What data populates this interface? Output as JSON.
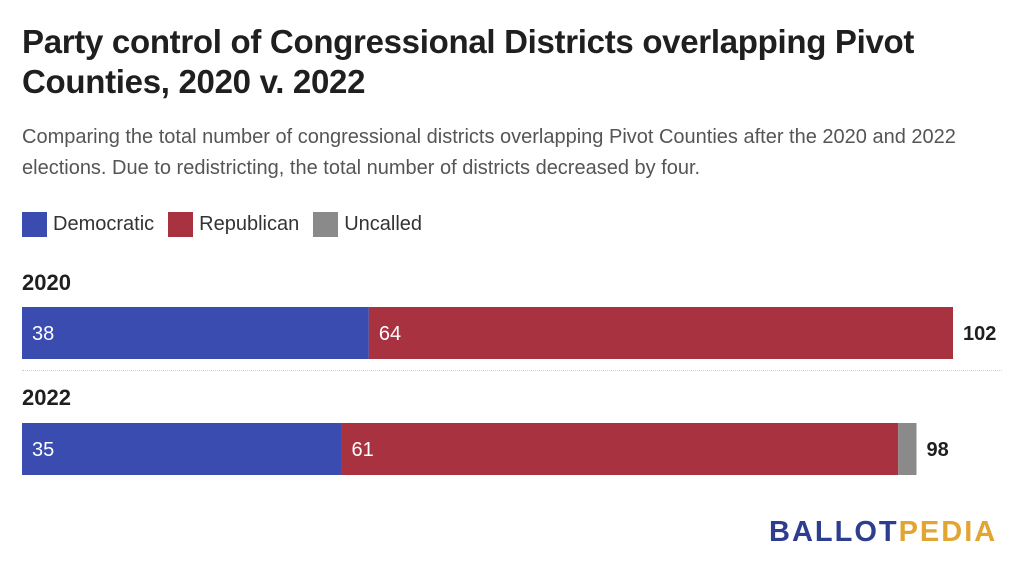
{
  "title": "Party control of Congressional Districts overlapping Pivot Counties, 2020 v. 2022",
  "subtitle": "Comparing the total number of congressional districts overlapping Pivot Counties after the 2020 and 2022 elections. Due to redistricting, the total number of districts decreased by four.",
  "legend": [
    {
      "label": "Democratic",
      "color": "#3a4cb0"
    },
    {
      "label": "Republican",
      "color": "#a8323f"
    },
    {
      "label": "Uncalled",
      "color": "#8a8a8a"
    }
  ],
  "logo": {
    "part1": "BALLOT",
    "part2": "PEDIA",
    "color1": "#2d3d8f",
    "color2": "#e3a532"
  },
  "chart_data": {
    "type": "bar",
    "stacked": true,
    "orientation": "horizontal",
    "categories": [
      "2020",
      "2022"
    ],
    "series": [
      {
        "name": "Democratic",
        "color": "#3a4cb0",
        "values": [
          38,
          35
        ]
      },
      {
        "name": "Republican",
        "color": "#a8323f",
        "values": [
          64,
          61
        ]
      },
      {
        "name": "Uncalled",
        "color": "#8a8a8a",
        "values": [
          0,
          2
        ]
      }
    ],
    "totals": [
      102,
      98
    ],
    "xlim": [
      0,
      102
    ],
    "legend_position": "top-left",
    "grid": false
  }
}
